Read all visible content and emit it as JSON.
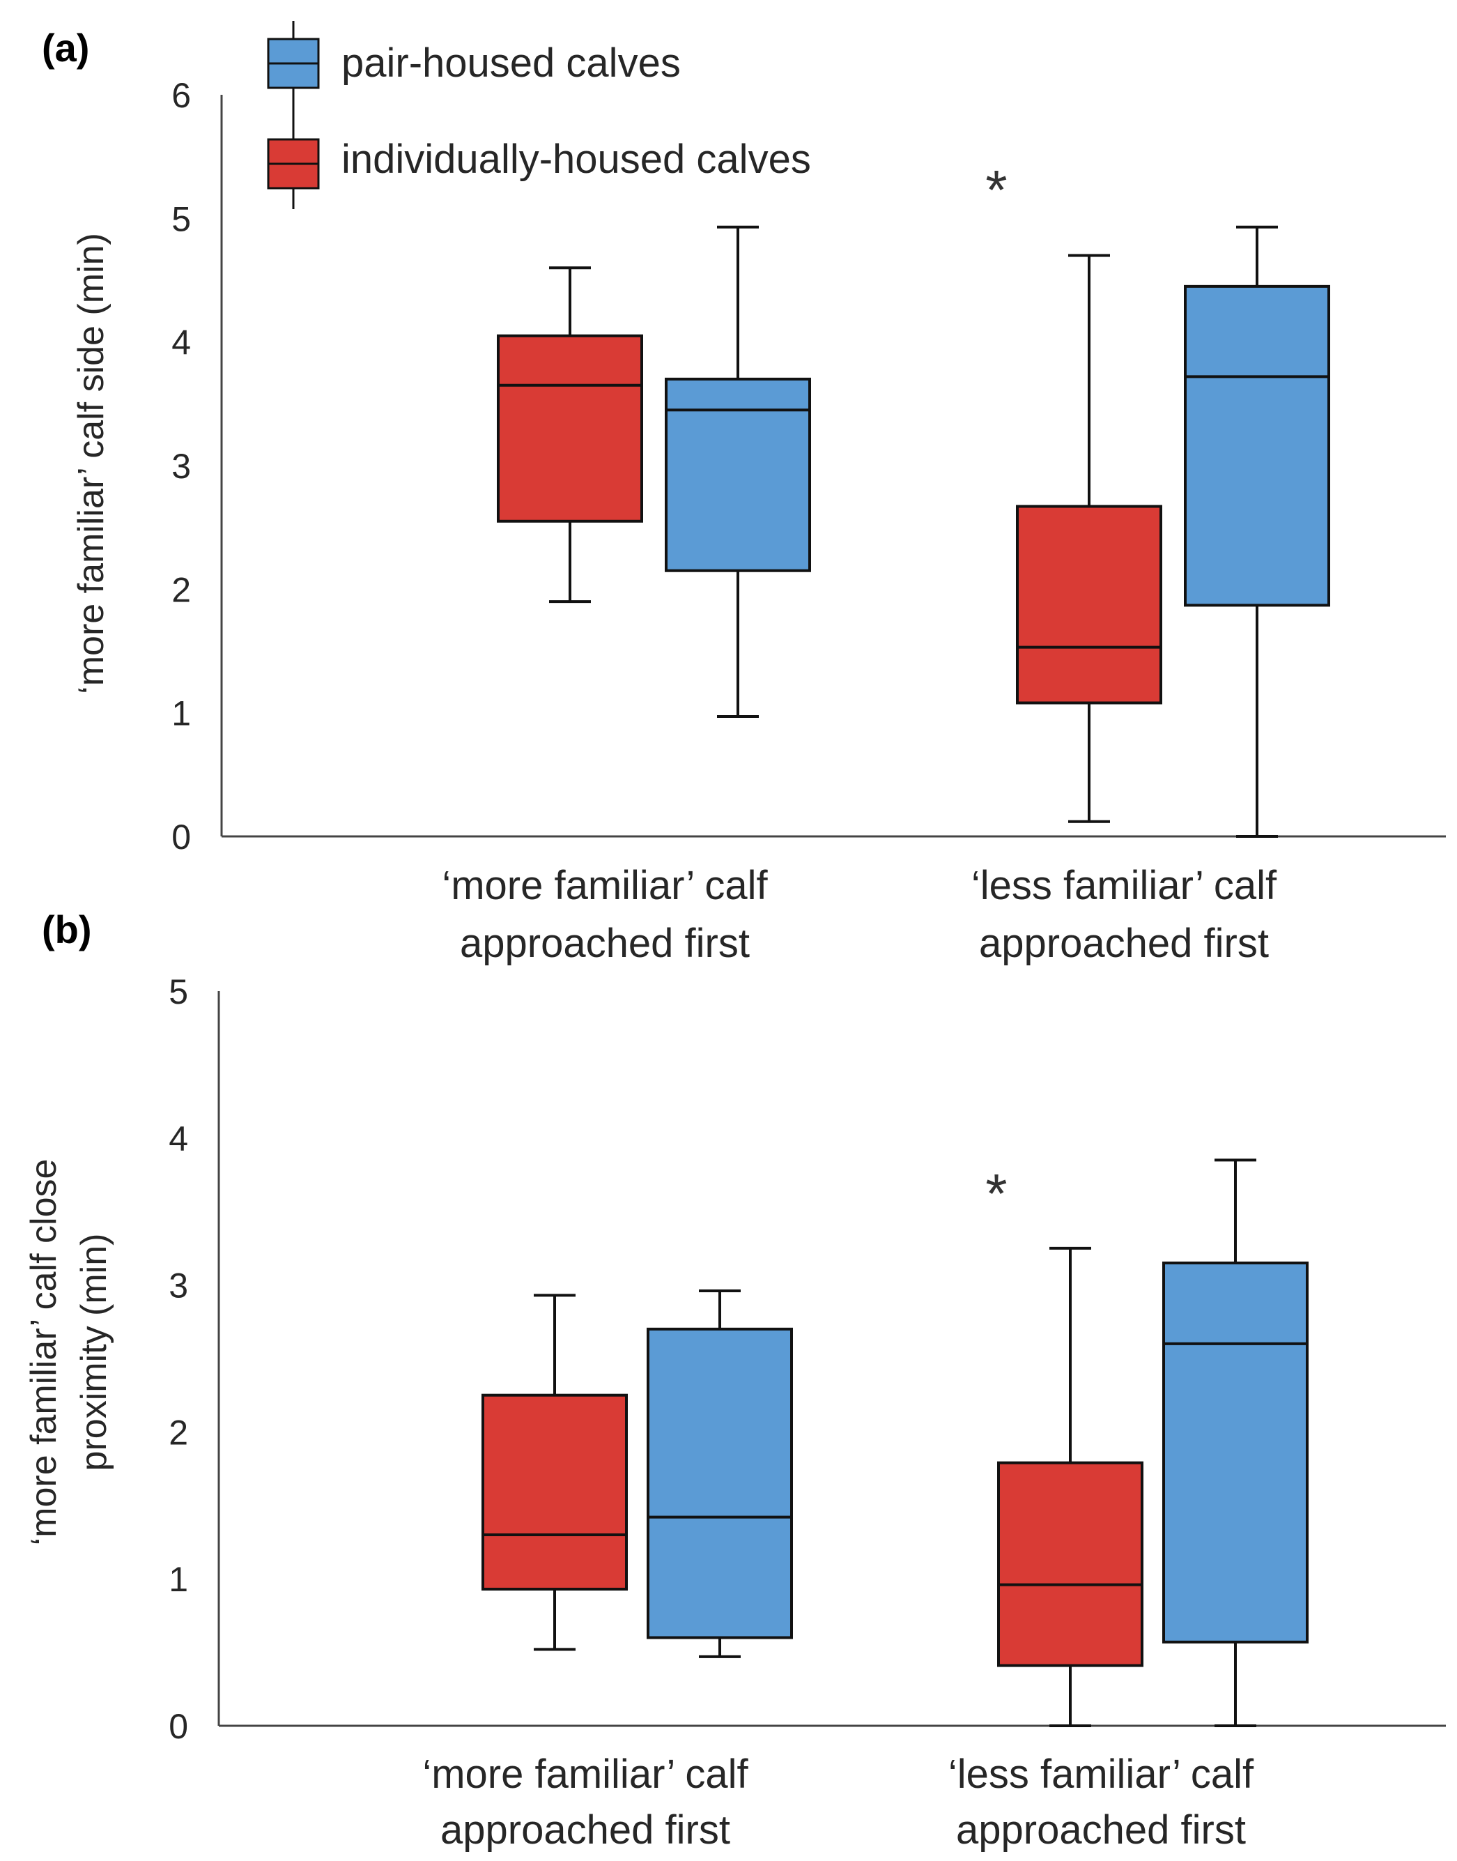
{
  "chart_data": [
    {
      "type": "box",
      "panel_label": "(a)",
      "ylabel": "‘more familiar’ calf side (min)",
      "ylim": [
        0,
        6
      ],
      "yticks": [
        0,
        1,
        2,
        3,
        4,
        5,
        6
      ],
      "grid": false,
      "legend_position": "top-left",
      "categories": [
        [
          "‘more familiar’ calf",
          "approached first"
        ],
        [
          "‘less familiar’ calf",
          "approached first"
        ]
      ],
      "series": [
        {
          "name": "individually-housed calves",
          "color": "#d93b35",
          "boxes": [
            {
              "min": 1.9,
              "q1": 2.55,
              "median": 3.65,
              "q3": 4.05,
              "max": 4.6
            },
            {
              "min": 0.12,
              "q1": 1.08,
              "median": 1.53,
              "q3": 2.67,
              "max": 4.7
            }
          ]
        },
        {
          "name": "pair-housed calves",
          "color": "#5b9bd5",
          "boxes": [
            {
              "min": 0.97,
              "q1": 2.15,
              "median": 3.45,
              "q3": 3.7,
              "max": 4.93
            },
            {
              "min": 0.0,
              "q1": 1.87,
              "median": 3.72,
              "q3": 4.45,
              "max": 4.93
            }
          ]
        }
      ],
      "annotations": [
        {
          "text": "*",
          "category": 1
        }
      ]
    },
    {
      "type": "box",
      "panel_label": "(b)",
      "ylabel_lines": [
        "‘more familiar’ calf close",
        "proximity (min)"
      ],
      "ylim": [
        0,
        5
      ],
      "yticks": [
        0,
        1,
        2,
        3,
        4,
        5
      ],
      "grid": false,
      "categories": [
        [
          "‘more familiar’ calf",
          "approached first"
        ],
        [
          "‘less familiar’ calf",
          "approached first"
        ]
      ],
      "series": [
        {
          "name": "individually-housed calves",
          "color": "#d93b35",
          "boxes": [
            {
              "min": 0.52,
              "q1": 0.93,
              "median": 1.3,
              "q3": 2.25,
              "max": 2.93
            },
            {
              "min": 0.0,
              "q1": 0.41,
              "median": 0.96,
              "q3": 1.79,
              "max": 3.25
            }
          ]
        },
        {
          "name": "pair-housed calves",
          "color": "#5b9bd5",
          "boxes": [
            {
              "min": 0.47,
              "q1": 0.6,
              "median": 1.42,
              "q3": 2.7,
              "max": 2.96
            },
            {
              "min": 0.0,
              "q1": 0.57,
              "median": 2.6,
              "q3": 3.15,
              "max": 3.85
            }
          ]
        }
      ],
      "annotations": [
        {
          "text": "*",
          "category": 1
        }
      ]
    }
  ],
  "legend": [
    {
      "label": "pair-housed calves",
      "color": "#5b9bd5"
    },
    {
      "label": "individually-housed calves",
      "color": "#d93b35"
    }
  ]
}
